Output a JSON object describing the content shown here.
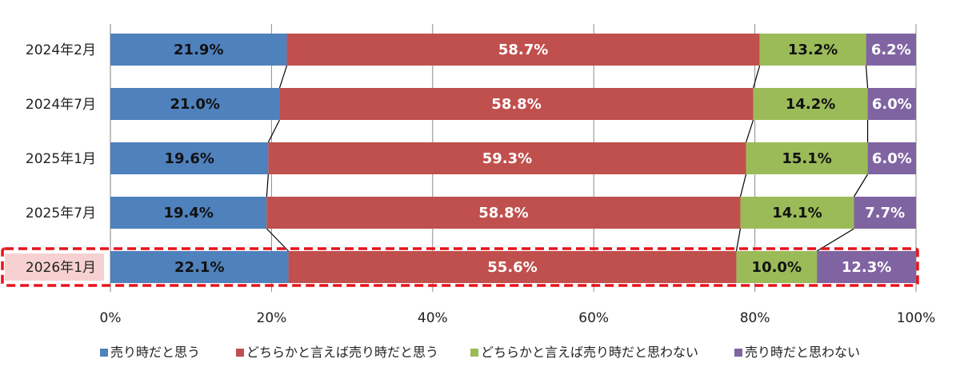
{
  "chart_data": {
    "type": "bar",
    "orientation": "horizontal-stacked-percent",
    "categories": [
      "2024年2月",
      "2024年7月",
      "2025年1月",
      "2025年7月",
      "2026年1月"
    ],
    "highlighted_category": "2026年1月",
    "series": [
      {
        "name": "売り時だと思う",
        "color": "#4f81bd",
        "label_color": "#111111",
        "values": [
          21.9,
          21.0,
          19.6,
          19.4,
          22.1
        ],
        "labels": [
          "21.9%",
          "21.0%",
          "19.6%",
          "19.4%",
          "22.1%"
        ]
      },
      {
        "name": "どちらかと言えば売り時だと思う",
        "color": "#c0504d",
        "label_color": "#ffffff",
        "values": [
          58.7,
          58.8,
          59.3,
          58.8,
          55.6
        ],
        "labels": [
          "58.7%",
          "58.8%",
          "59.3%",
          "58.8%",
          "55.6%"
        ]
      },
      {
        "name": "どちらかと言えば売り時だと思わない",
        "color": "#9bbb59",
        "label_color": "#111111",
        "values": [
          13.2,
          14.2,
          15.1,
          14.1,
          10.0
        ],
        "labels": [
          "13.2%",
          "14.2%",
          "15.1%",
          "14.1%",
          "10.0%"
        ]
      },
      {
        "name": "売り時だと思わない",
        "color": "#8064a2",
        "label_color": "#ffffff",
        "values": [
          6.2,
          6.0,
          6.0,
          7.7,
          12.3
        ],
        "labels": [
          "6.2%",
          "6.0%",
          "6.0%",
          "7.7%",
          "12.3%"
        ]
      }
    ],
    "xlim": [
      0,
      100
    ],
    "x_ticks": [
      "0%",
      "20%",
      "40%",
      "60%",
      "80%",
      "100%"
    ],
    "grid": true,
    "series_lines": true,
    "legend_position": "bottom",
    "highlight_color": "#e8121a"
  }
}
